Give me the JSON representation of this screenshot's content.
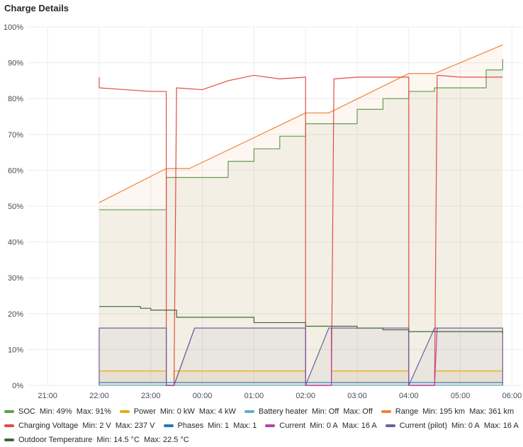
{
  "panel": {
    "title": "Charge Details"
  },
  "chart_data": {
    "type": "line",
    "title": "Charge Details",
    "xlabel": "",
    "ylabel": "",
    "x_unit": "hours since 21:00",
    "xlim": [
      -0.4,
      9.2
    ],
    "ylim": [
      0,
      100
    ],
    "y_ticks": [
      0,
      10,
      20,
      30,
      40,
      50,
      60,
      70,
      80,
      90,
      100
    ],
    "y_tick_labels": [
      "0%",
      "10%",
      "20%",
      "30%",
      "40%",
      "50%",
      "60%",
      "70%",
      "80%",
      "90%",
      "100%"
    ],
    "x_ticks": [
      0,
      1,
      2,
      3,
      4,
      5,
      6,
      7,
      8,
      9
    ],
    "x_tick_labels": [
      "21:00",
      "22:00",
      "23:00",
      "00:00",
      "01:00",
      "02:00",
      "03:00",
      "04:00",
      "05:00",
      "06:00"
    ],
    "grid": true,
    "legend_position": "bottom",
    "series": [
      {
        "name": "SOC",
        "color": "#629e51",
        "fill": true,
        "step": true,
        "x": [
          1.0,
          2.3,
          2.45,
          3.0,
          3.5,
          4.0,
          4.5,
          5.0,
          5.5,
          6.0,
          6.5,
          7.0,
          7.5,
          8.0,
          8.5,
          8.82
        ],
        "y": [
          49,
          58,
          58,
          58,
          62.5,
          66,
          69.5,
          73,
          73,
          77,
          80,
          82,
          83,
          83,
          88,
          91
        ]
      },
      {
        "name": "Power",
        "color": "#e5ac0e",
        "fill": true,
        "step": true,
        "x": [
          1.0,
          2.3,
          2.3,
          2.45,
          2.45,
          5.0,
          5.0,
          5.5,
          5.5,
          7.0,
          7.0,
          7.5,
          7.5,
          8.82
        ],
        "y": [
          4,
          4,
          0,
          0,
          4,
          4,
          0,
          0,
          4,
          4,
          0,
          0,
          4,
          4
        ]
      },
      {
        "name": "Battery heater",
        "color": "#64b0c8",
        "fill": false,
        "step": true,
        "x": [
          1.0,
          8.82
        ],
        "y": [
          0,
          0
        ]
      },
      {
        "name": "Range",
        "color": "#ef843c",
        "fill": true,
        "step": false,
        "x": [
          1.0,
          2.3,
          2.45,
          2.75,
          5.0,
          5.45,
          7.0,
          7.5,
          8.82
        ],
        "y": [
          51,
          60.5,
          60.5,
          60.5,
          76,
          76,
          87,
          87,
          95
        ]
      },
      {
        "name": "Charging Voltage",
        "color": "#e24d42",
        "fill": false,
        "step": false,
        "x": [
          1.0,
          1.0,
          1.5,
          2.0,
          2.3,
          2.3,
          2.45,
          2.5,
          3.0,
          3.5,
          4.0,
          4.5,
          5.0,
          5.0,
          5.5,
          5.55,
          6.0,
          6.5,
          7.0,
          7.0,
          7.5,
          7.55,
          8.0,
          8.5,
          8.82
        ],
        "y": [
          86,
          83,
          82.5,
          82,
          82,
          0,
          0,
          83,
          82.5,
          85,
          86.5,
          85.5,
          86,
          0,
          0,
          85.5,
          86,
          86,
          86,
          0,
          0,
          86.5,
          86,
          86,
          86
        ]
      },
      {
        "name": "Phases",
        "color": "#1f78c1",
        "fill": false,
        "step": true,
        "x": [
          1.0,
          8.82
        ],
        "y": [
          0.8,
          0.8
        ]
      },
      {
        "name": "Current",
        "color": "#ba43a9",
        "fill": false,
        "step": false,
        "x": [
          1.0,
          2.3,
          2.3,
          2.45,
          2.85,
          5.0,
          5.0,
          5.5,
          5.5,
          7.0,
          7.0,
          7.5,
          7.55,
          8.82
        ],
        "y": [
          16,
          16,
          0,
          0,
          16,
          16,
          0,
          0,
          16,
          16,
          0,
          0,
          16,
          16
        ]
      },
      {
        "name": "Current (pilot)",
        "color": "#705da0",
        "fill": true,
        "step": false,
        "x": [
          1.0,
          1.0,
          2.3,
          2.3,
          2.45,
          2.85,
          5.0,
          5.0,
          5.45,
          5.5,
          7.0,
          7.0,
          7.5,
          7.55,
          8.82,
          8.82
        ],
        "y": [
          0,
          16,
          16,
          0,
          0,
          16,
          16,
          0,
          16,
          16,
          16,
          0,
          16,
          16,
          16,
          0
        ]
      },
      {
        "name": "Outdoor Temperature",
        "color": "#3f6833",
        "fill": false,
        "step": true,
        "x": [
          1.0,
          1.4,
          1.8,
          2.0,
          2.5,
          2.9,
          4.0,
          5.0,
          5.5,
          6.0,
          6.5,
          7.0,
          8.0,
          8.82
        ],
        "y": [
          22,
          22,
          21.5,
          21,
          19,
          19,
          17.5,
          16.5,
          16.5,
          16,
          15.5,
          15,
          15,
          14.5
        ]
      }
    ]
  },
  "legend": [
    [
      {
        "name": "SOC",
        "stats": "Min: 49%  Max: 91%",
        "color": "#629e51"
      },
      {
        "name": "Power",
        "stats": "Min: 0 kW  Max: 4 kW",
        "color": "#e5ac0e"
      },
      {
        "name": "Battery heater",
        "stats": "Min: Off  Max: Off",
        "color": "#64b0c8"
      },
      {
        "name": "Range",
        "stats": "Min: 195 km  Max: 361 km",
        "color": "#ef843c"
      }
    ],
    [
      {
        "name": "Charging Voltage",
        "stats": "Min: 2 V  Max: 237 V",
        "color": "#e24d42"
      },
      {
        "name": "Phases",
        "stats": "Min: 1  Max: 1",
        "color": "#1f78c1"
      },
      {
        "name": "Current",
        "stats": "Min: 0 A  Max: 16 A",
        "color": "#ba43a9"
      },
      {
        "name": "Current (pilot)",
        "stats": "Min: 0 A  Max: 16 A",
        "color": "#705da0"
      }
    ],
    [
      {
        "name": "Outdoor Temperature",
        "stats": "Min: 14.5 °C  Max: 22.5 °C",
        "color": "#3f6833"
      }
    ]
  ]
}
